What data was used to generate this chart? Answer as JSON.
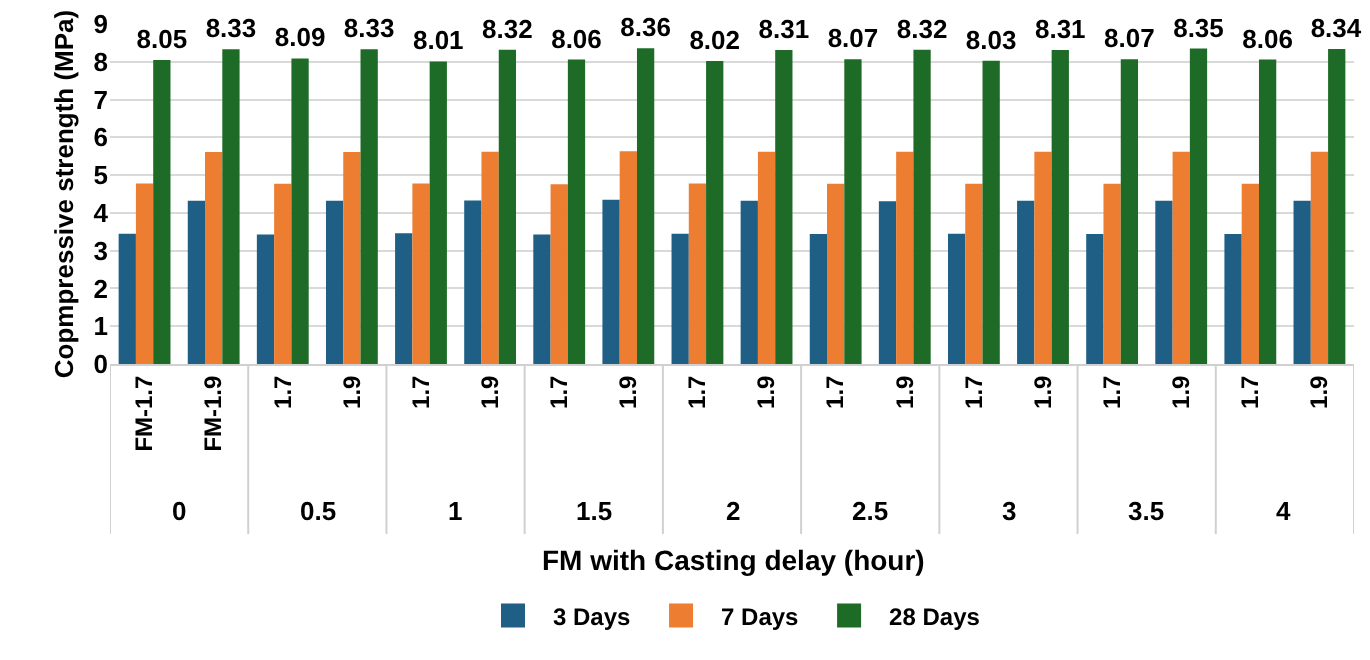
{
  "chart_data": {
    "type": "bar",
    "xlabel": "FM with Casting delay (hour)",
    "ylabel": "Copmpressive strength (MPa)",
    "categories": [
      "FM-1.7",
      "FM-1.9",
      "1.7",
      "1.9",
      "1.7",
      "1.9",
      "1.7",
      "1.9",
      "1.7",
      "1.9",
      "1.7",
      "1.9",
      "1.7",
      "1.9",
      "1.7",
      "1.9",
      "1.7",
      "1.9"
    ],
    "annotations": [
      "0",
      "0.5",
      "1",
      "1.5",
      "2",
      "2.5",
      "3",
      "3.5",
      "4"
    ],
    "series": [
      {
        "name": "3 Days",
        "color": "#1f5f85",
        "values": [
          3.45,
          4.32,
          3.43,
          4.32,
          3.46,
          4.33,
          3.43,
          4.35,
          3.45,
          4.32,
          3.44,
          4.31,
          3.45,
          4.32,
          3.44,
          4.32,
          3.44,
          4.32
        ]
      },
      {
        "name": "7 Days",
        "color": "#ed7d31",
        "values": [
          4.78,
          5.61,
          4.77,
          5.61,
          4.78,
          5.62,
          4.76,
          5.63,
          4.78,
          5.62,
          4.77,
          5.62,
          4.77,
          5.62,
          4.77,
          5.62,
          4.77,
          5.62
        ]
      },
      {
        "name": "28 Days",
        "color": "#1e6b27",
        "values": [
          8.05,
          8.33,
          8.09,
          8.33,
          8.01,
          8.32,
          8.06,
          8.36,
          8.02,
          8.31,
          8.07,
          8.32,
          8.03,
          8.31,
          8.07,
          8.35,
          8.06,
          8.34
        ],
        "value_labels": [
          "8.05",
          "8.33",
          "8.09",
          "8.33",
          "8.01",
          "8.32",
          "8.06",
          "8.36",
          "8.02",
          "8.31",
          "8.07",
          "8.32",
          "8.03",
          "8.31",
          "8.07",
          "8.35",
          "8.06",
          "8.34"
        ]
      }
    ],
    "ylim": [
      0,
      9
    ],
    "yticks": [
      0,
      1,
      2,
      3,
      4,
      5,
      6,
      7,
      8,
      9
    ],
    "grid": "y",
    "legend": "bottom"
  }
}
